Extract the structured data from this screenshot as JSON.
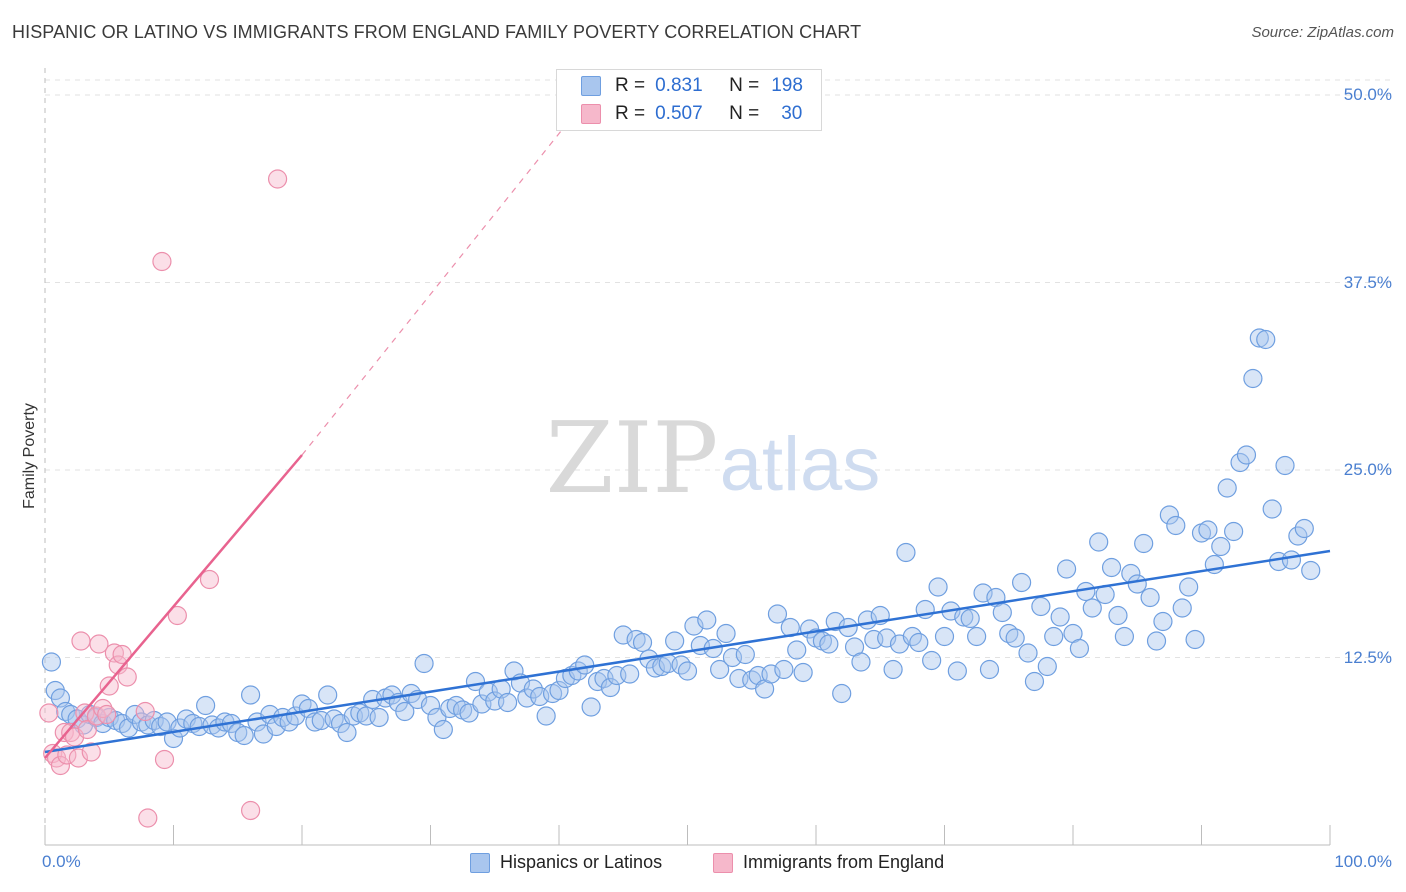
{
  "title": "HISPANIC OR LATINO VS IMMIGRANTS FROM ENGLAND FAMILY POVERTY CORRELATION CHART",
  "source": "Source: ZipAtlas.com",
  "watermark": {
    "zip": "ZIP",
    "atlas": "atlas"
  },
  "colors": {
    "blue_fill": "#a9c6ee",
    "blue_edge": "#6f9fe0",
    "blue_line": "#2f72d4",
    "pink_fill": "#f6b8cb",
    "pink_edge": "#ec8fac",
    "pink_line": "#e8638f",
    "grid": "#e2e2e2",
    "tick_text": "#4a7fd0"
  },
  "legend": {
    "items": [
      {
        "r_label": "R =",
        "r_value": "0.831",
        "n_label": "N =",
        "n_value": "198"
      },
      {
        "r_label": "R =",
        "r_value": "0.507",
        "n_label": "N =",
        "n_value": "30"
      }
    ]
  },
  "bottom_legend": [
    "Hispanics or Latinos",
    "Immigrants from England"
  ],
  "chart_data": {
    "type": "scatter",
    "title": "HISPANIC OR LATINO VS IMMIGRANTS FROM ENGLAND FAMILY POVERTY CORRELATION CHART",
    "xlabel": "",
    "ylabel": "Family Poverty",
    "xlim": [
      0,
      100
    ],
    "ylim": [
      0,
      50
    ],
    "x_tick_labels": [
      "0.0%",
      "100.0%"
    ],
    "y_ticks": [
      12.5,
      25.0,
      37.5,
      50.0
    ],
    "y_tick_labels": [
      "12.5%",
      "25.0%",
      "37.5%",
      "50.0%"
    ],
    "grid": true,
    "legend_position": "top-center",
    "series": [
      {
        "name": "Hispanics or Latinos",
        "r": 0.831,
        "n": 198,
        "trend": {
          "x": [
            0,
            100
          ],
          "y": [
            6.2,
            19.6
          ]
        },
        "points": [
          [
            0.5,
            12.2
          ],
          [
            0.8,
            10.3
          ],
          [
            1.2,
            9.8
          ],
          [
            1.6,
            8.9
          ],
          [
            2.0,
            8.7
          ],
          [
            2.5,
            8.4
          ],
          [
            3.0,
            8.0
          ],
          [
            3.5,
            8.7
          ],
          [
            4.0,
            8.5
          ],
          [
            4.5,
            8.1
          ],
          [
            5.0,
            8.5
          ],
          [
            5.5,
            8.3
          ],
          [
            6.0,
            8.1
          ],
          [
            6.5,
            7.8
          ],
          [
            7.0,
            8.7
          ],
          [
            7.5,
            8.2
          ],
          [
            8.0,
            8.0
          ],
          [
            8.5,
            8.3
          ],
          [
            9.0,
            7.9
          ],
          [
            9.5,
            8.2
          ],
          [
            10.0,
            7.1
          ],
          [
            10.5,
            7.8
          ],
          [
            11.0,
            8.4
          ],
          [
            11.5,
            8.1
          ],
          [
            12.0,
            7.9
          ],
          [
            12.5,
            9.3
          ],
          [
            13.0,
            8.0
          ],
          [
            13.5,
            7.8
          ],
          [
            14.0,
            8.2
          ],
          [
            14.5,
            8.1
          ],
          [
            15.0,
            7.5
          ],
          [
            15.5,
            7.3
          ],
          [
            16.0,
            10.0
          ],
          [
            16.5,
            8.2
          ],
          [
            17.0,
            7.4
          ],
          [
            17.5,
            8.7
          ],
          [
            18.0,
            7.9
          ],
          [
            18.5,
            8.5
          ],
          [
            19.0,
            8.2
          ],
          [
            19.5,
            8.6
          ],
          [
            20.0,
            9.4
          ],
          [
            20.5,
            9.1
          ],
          [
            21.0,
            8.2
          ],
          [
            21.5,
            8.3
          ],
          [
            22.0,
            10.0
          ],
          [
            22.5,
            8.4
          ],
          [
            23.0,
            8.1
          ],
          [
            23.5,
            7.5
          ],
          [
            24.0,
            8.6
          ],
          [
            24.5,
            8.8
          ],
          [
            25.0,
            8.6
          ],
          [
            25.5,
            9.7
          ],
          [
            26.0,
            8.5
          ],
          [
            26.5,
            9.8
          ],
          [
            27.0,
            10.0
          ],
          [
            27.5,
            9.5
          ],
          [
            28.0,
            8.9
          ],
          [
            28.5,
            10.1
          ],
          [
            29.0,
            9.7
          ],
          [
            29.5,
            12.1
          ],
          [
            30.0,
            9.3
          ],
          [
            30.5,
            8.5
          ],
          [
            31.0,
            7.7
          ],
          [
            31.5,
            9.1
          ],
          [
            32.0,
            9.3
          ],
          [
            32.5,
            9.0
          ],
          [
            33.0,
            8.8
          ],
          [
            33.5,
            10.9
          ],
          [
            34.0,
            9.4
          ],
          [
            34.5,
            10.2
          ],
          [
            35.0,
            9.6
          ],
          [
            35.5,
            10.4
          ],
          [
            36.0,
            9.5
          ],
          [
            36.5,
            11.6
          ],
          [
            37.0,
            10.8
          ],
          [
            37.5,
            9.8
          ],
          [
            38.0,
            10.4
          ],
          [
            38.5,
            9.9
          ],
          [
            39.0,
            8.6
          ],
          [
            39.5,
            10.1
          ],
          [
            40.0,
            10.3
          ],
          [
            40.5,
            11.1
          ],
          [
            41.0,
            11.3
          ],
          [
            41.5,
            11.6
          ],
          [
            42.0,
            12.0
          ],
          [
            42.5,
            9.2
          ],
          [
            43.0,
            10.9
          ],
          [
            43.5,
            11.1
          ],
          [
            44.0,
            10.5
          ],
          [
            44.5,
            11.3
          ],
          [
            45.0,
            14.0
          ],
          [
            45.5,
            11.4
          ],
          [
            46.0,
            13.7
          ],
          [
            46.5,
            13.5
          ],
          [
            47.0,
            12.4
          ],
          [
            47.5,
            11.8
          ],
          [
            48.0,
            11.9
          ],
          [
            48.5,
            12.1
          ],
          [
            49.0,
            13.6
          ],
          [
            49.5,
            12.0
          ],
          [
            50.0,
            11.6
          ],
          [
            50.5,
            14.6
          ],
          [
            51.0,
            13.3
          ],
          [
            51.5,
            15.0
          ],
          [
            52.0,
            13.1
          ],
          [
            52.5,
            11.7
          ],
          [
            53.0,
            14.1
          ],
          [
            53.5,
            12.5
          ],
          [
            54.0,
            11.1
          ],
          [
            54.5,
            12.7
          ],
          [
            55.0,
            11.0
          ],
          [
            55.5,
            11.3
          ],
          [
            56.0,
            10.4
          ],
          [
            56.5,
            11.4
          ],
          [
            57.0,
            15.4
          ],
          [
            57.5,
            11.7
          ],
          [
            58.0,
            14.5
          ],
          [
            58.5,
            13.0
          ],
          [
            59.0,
            11.5
          ],
          [
            59.5,
            14.4
          ],
          [
            60.0,
            13.8
          ],
          [
            60.5,
            13.6
          ],
          [
            61.0,
            13.4
          ],
          [
            61.5,
            14.9
          ],
          [
            62.0,
            10.1
          ],
          [
            62.5,
            14.5
          ],
          [
            63.0,
            13.2
          ],
          [
            63.5,
            12.2
          ],
          [
            64.0,
            15.0
          ],
          [
            64.5,
            13.7
          ],
          [
            65.0,
            15.3
          ],
          [
            65.5,
            13.8
          ],
          [
            66.0,
            11.7
          ],
          [
            66.5,
            13.4
          ],
          [
            67.0,
            19.5
          ],
          [
            67.5,
            13.9
          ],
          [
            68.0,
            13.5
          ],
          [
            68.5,
            15.7
          ],
          [
            69.0,
            12.3
          ],
          [
            69.5,
            17.2
          ],
          [
            70.0,
            13.9
          ],
          [
            70.5,
            15.6
          ],
          [
            71.0,
            11.6
          ],
          [
            71.5,
            15.2
          ],
          [
            72.0,
            15.1
          ],
          [
            72.5,
            13.9
          ],
          [
            73.0,
            16.8
          ],
          [
            73.5,
            11.7
          ],
          [
            74.0,
            16.5
          ],
          [
            74.5,
            15.5
          ],
          [
            75.0,
            14.1
          ],
          [
            75.5,
            13.8
          ],
          [
            76.0,
            17.5
          ],
          [
            76.5,
            12.8
          ],
          [
            77.0,
            10.9
          ],
          [
            77.5,
            15.9
          ],
          [
            78.0,
            11.9
          ],
          [
            78.5,
            13.9
          ],
          [
            79.0,
            15.2
          ],
          [
            79.5,
            18.4
          ],
          [
            80.0,
            14.1
          ],
          [
            80.5,
            13.1
          ],
          [
            81.0,
            16.9
          ],
          [
            81.5,
            15.8
          ],
          [
            82.0,
            20.2
          ],
          [
            82.5,
            16.7
          ],
          [
            83.0,
            18.5
          ],
          [
            83.5,
            15.3
          ],
          [
            84.0,
            13.9
          ],
          [
            84.5,
            18.1
          ],
          [
            85.0,
            17.4
          ],
          [
            85.5,
            20.1
          ],
          [
            86.0,
            16.5
          ],
          [
            86.5,
            13.6
          ],
          [
            87.0,
            14.9
          ],
          [
            87.5,
            22.0
          ],
          [
            88.0,
            21.3
          ],
          [
            88.5,
            15.8
          ],
          [
            89.0,
            17.2
          ],
          [
            89.5,
            13.7
          ],
          [
            90.0,
            20.8
          ],
          [
            90.5,
            21.0
          ],
          [
            91.0,
            18.7
          ],
          [
            91.5,
            19.9
          ],
          [
            92.0,
            23.8
          ],
          [
            92.5,
            20.9
          ],
          [
            93.0,
            25.5
          ],
          [
            93.5,
            26.0
          ],
          [
            94.0,
            31.1
          ],
          [
            94.5,
            33.8
          ],
          [
            95.0,
            33.7
          ],
          [
            95.5,
            22.4
          ],
          [
            96.0,
            18.9
          ],
          [
            96.5,
            25.3
          ],
          [
            97.0,
            19.0
          ],
          [
            97.5,
            20.6
          ],
          [
            98.0,
            21.1
          ],
          [
            98.5,
            18.3
          ]
        ]
      },
      {
        "name": "Immigrants from England",
        "r": 0.507,
        "n": 30,
        "trend": {
          "x": [
            0,
            20
          ],
          "y": [
            5.8,
            26.0
          ]
        },
        "trend_extension": {
          "x": [
            20,
            41
          ],
          "y": [
            26.0,
            48.5
          ]
        },
        "points": [
          [
            0.3,
            8.8
          ],
          [
            0.6,
            6.1
          ],
          [
            0.9,
            5.8
          ],
          [
            1.2,
            5.3
          ],
          [
            1.5,
            7.5
          ],
          [
            1.7,
            6.0
          ],
          [
            2.0,
            7.5
          ],
          [
            2.3,
            7.2
          ],
          [
            2.6,
            5.8
          ],
          [
            2.8,
            13.6
          ],
          [
            3.1,
            8.8
          ],
          [
            3.3,
            7.7
          ],
          [
            3.6,
            6.2
          ],
          [
            4.0,
            8.6
          ],
          [
            4.2,
            13.4
          ],
          [
            4.5,
            9.1
          ],
          [
            4.8,
            8.7
          ],
          [
            5.0,
            10.6
          ],
          [
            5.4,
            12.8
          ],
          [
            5.7,
            12.0
          ],
          [
            6.0,
            12.7
          ],
          [
            6.4,
            11.2
          ],
          [
            7.8,
            8.9
          ],
          [
            8.0,
            1.8
          ],
          [
            9.3,
            5.7
          ],
          [
            10.3,
            15.3
          ],
          [
            12.8,
            17.7
          ],
          [
            16.0,
            2.3
          ],
          [
            9.1,
            38.9
          ],
          [
            18.1,
            44.4
          ]
        ]
      }
    ]
  }
}
